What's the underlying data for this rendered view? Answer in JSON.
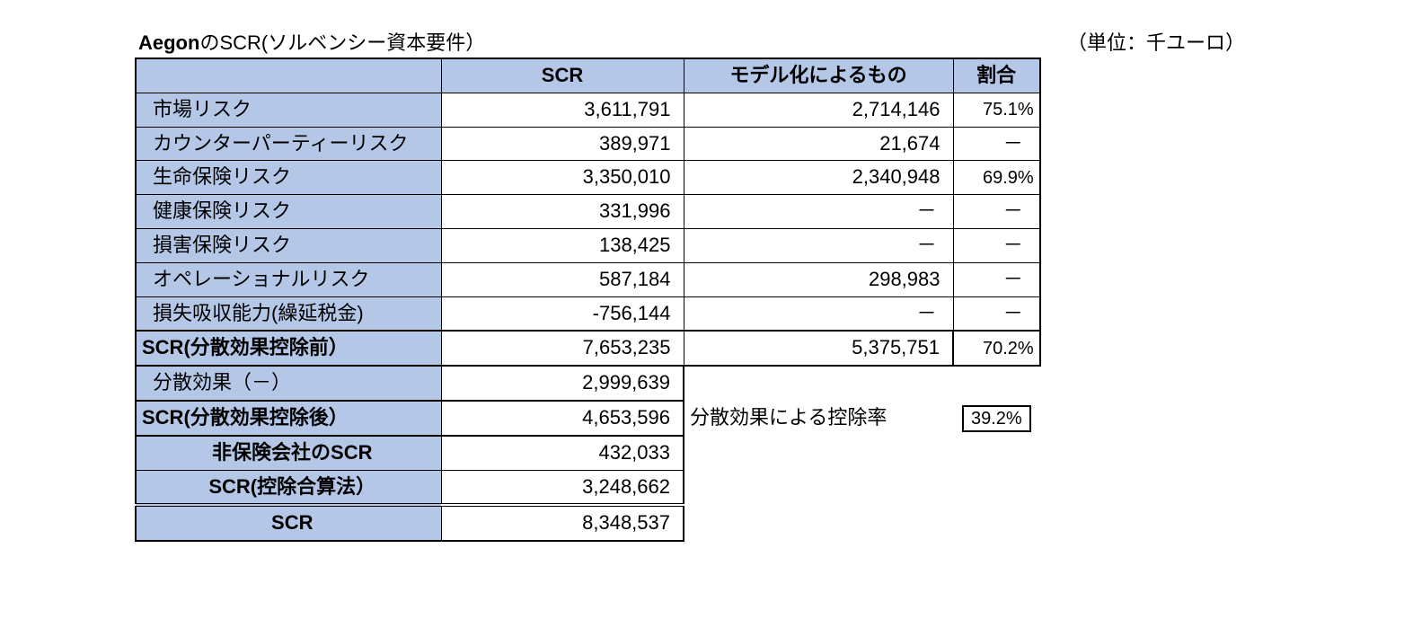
{
  "title_prefix": "Aegon",
  "title_rest": "のSCR(ソルベンシー資本要件）",
  "unit": "（単位：千ユーロ）",
  "headers": {
    "col1": "",
    "col2": "SCR",
    "col3": "モデル化によるもの",
    "col4": "割合"
  },
  "rows": [
    {
      "label": "市場リスク",
      "scr": "3,611,791",
      "model": "2,714,146",
      "ratio": "75.1%",
      "bold": false,
      "modelDash": false,
      "ratioDash": false
    },
    {
      "label": "カウンターパーティーリスク",
      "scr": "389,971",
      "model": "21,674",
      "ratio": "－",
      "bold": false,
      "modelDash": false,
      "ratioDash": true
    },
    {
      "label": "生命保険リスク",
      "scr": "3,350,010",
      "model": "2,340,948",
      "ratio": "69.9%",
      "bold": false,
      "modelDash": false,
      "ratioDash": false
    },
    {
      "label": "健康保険リスク",
      "scr": "331,996",
      "model": "－",
      "ratio": "－",
      "bold": false,
      "modelDash": true,
      "ratioDash": true
    },
    {
      "label": "損害保険リスク",
      "scr": "138,425",
      "model": "－",
      "ratio": "－",
      "bold": false,
      "modelDash": true,
      "ratioDash": true
    },
    {
      "label": "オペレーショナルリスク",
      "scr": "587,184",
      "model": "298,983",
      "ratio": "－",
      "bold": false,
      "modelDash": false,
      "ratioDash": true
    },
    {
      "label": "損失吸収能力(繰延税金)",
      "scr": "-756,144",
      "model": "－",
      "ratio": "－",
      "bold": false,
      "modelDash": true,
      "ratioDash": true
    }
  ],
  "subtotal": {
    "label": "SCR(分散効果控除前）",
    "scr": "7,653,235",
    "model": "5,375,751",
    "ratio": "70.2%"
  },
  "diversification": {
    "label": "分散効果（－）",
    "scr": "2,999,639"
  },
  "after_div": {
    "label": "SCR(分散効果控除後）",
    "scr": "4,653,596",
    "note": "分散効果による控除率",
    "ratio": "39.2%"
  },
  "noninsurance": {
    "label": "非保険会社のSCR",
    "scr": "432,033"
  },
  "deduction": {
    "label": "SCR(控除合算法）",
    "scr": "3,248,662"
  },
  "final": {
    "label": "SCR",
    "scr": "8,348,537"
  },
  "colors": {
    "header_bg": "#b4c7e7",
    "text": "#000000",
    "bg": "#ffffff"
  }
}
